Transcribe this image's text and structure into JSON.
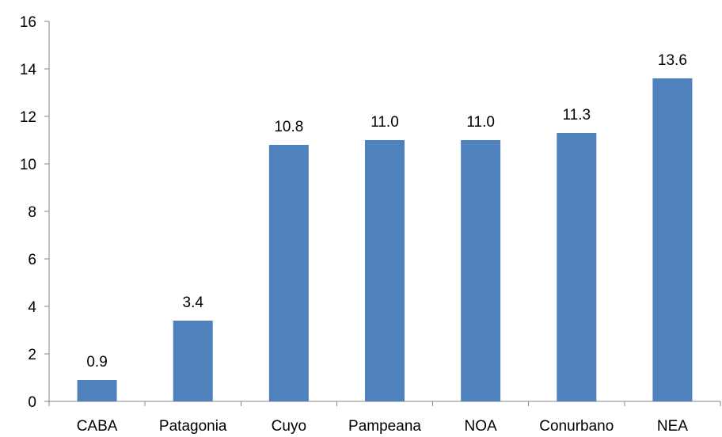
{
  "chart_data": {
    "type": "bar",
    "categories": [
      "CABA",
      "Patagonia",
      "Cuyo",
      "Pampeana",
      "NOA",
      "Conurbano",
      "NEA"
    ],
    "values": [
      0.9,
      3.4,
      10.8,
      11.0,
      11.0,
      11.3,
      13.6
    ],
    "value_labels": [
      "0.9",
      "3.4",
      "10.8",
      "11.0",
      "11.0",
      "11.3",
      "13.6"
    ],
    "ylim": [
      0,
      16
    ],
    "yticks": [
      0,
      2,
      4,
      6,
      8,
      10,
      12,
      14,
      16
    ],
    "grid": false,
    "legend": "none",
    "bar_color": "#4f81bd",
    "axis_color": "#868686"
  }
}
